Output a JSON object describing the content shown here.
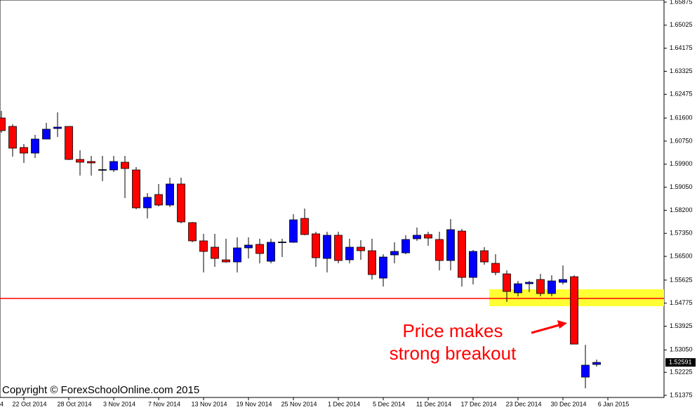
{
  "chart_data": {
    "type": "candlestick",
    "open": [
      1.61603,
      1.61292,
      1.60515,
      1.60308,
      1.60826,
      1.61215,
      1.61292,
      1.60075,
      1.59998,
      1.59687,
      1.59687,
      1.59972,
      1.59687,
      1.58289,
      1.58781,
      1.58392,
      1.59169,
      1.57745,
      1.57072,
      1.56839,
      1.56373,
      1.56295,
      1.56813,
      1.56942,
      1.56321,
      1.5702,
      1.5702,
      1.579,
      1.57331,
      1.56424,
      1.57279,
      1.56373,
      1.56839,
      1.56709,
      1.55699,
      1.56554,
      1.5663,
      1.57149,
      1.57305,
      1.57123,
      1.56347,
      1.57434,
      1.55725,
      1.56709,
      1.56243,
      1.55855,
      1.55156,
      1.55492,
      1.55648,
      1.5513,
      1.55544,
      1.55751,
      1.52048,
      1.52515
    ],
    "high": [
      1.61862,
      1.6137,
      1.60645,
      1.60982,
      1.61422,
      1.6181,
      1.613,
      1.60412,
      1.60205,
      1.60205,
      1.60205,
      1.60205,
      1.5979,
      1.58832,
      1.59169,
      1.59402,
      1.59402,
      1.57771,
      1.57331,
      1.57331,
      1.57149,
      1.57201,
      1.57201,
      1.57149,
      1.57149,
      1.57149,
      1.58056,
      1.58263,
      1.57408,
      1.57408,
      1.57408,
      1.57149,
      1.57098,
      1.57149,
      1.5658,
      1.5702,
      1.57279,
      1.57564,
      1.57408,
      1.57408,
      1.57874,
      1.57512,
      1.56735,
      1.56839,
      1.5658,
      1.55984,
      1.55596,
      1.55596,
      1.55855,
      1.55803,
      1.56165,
      1.55803,
      1.5324,
      1.52696
    ],
    "low": [
      1.6106,
      1.60179,
      1.59946,
      1.60127,
      1.60826,
      1.60904,
      1.60049,
      1.5948,
      1.5948,
      1.59273,
      1.59609,
      1.58651,
      1.58237,
      1.579,
      1.5834,
      1.58315,
      1.57719,
      1.5702,
      1.55906,
      1.56114,
      1.5627,
      1.55906,
      1.56424,
      1.56243,
      1.56243,
      1.56476,
      1.57,
      1.5728,
      1.56114,
      1.55906,
      1.56243,
      1.56243,
      1.56373,
      1.55648,
      1.55389,
      1.56243,
      1.5658,
      1.57072,
      1.5689,
      1.55984,
      1.55984,
      1.55389,
      1.55466,
      1.56191,
      1.55803,
      1.54819,
      1.55026,
      1.55182,
      1.55026,
      1.55026,
      1.55466,
      1.53265,
      1.51634,
      1.52437
    ],
    "close": [
      1.61137,
      1.6049,
      1.60308,
      1.60826,
      1.61189,
      1.61266,
      1.60075,
      1.59972,
      1.59946,
      1.597,
      1.59998,
      1.59739,
      1.58289,
      1.58677,
      1.58392,
      1.59169,
      1.57771,
      1.57072,
      1.56683,
      1.56424,
      1.56295,
      1.56813,
      1.56916,
      1.56606,
      1.5702,
      1.5703,
      1.57848,
      1.57305,
      1.5645,
      1.57279,
      1.56347,
      1.56839,
      1.56709,
      1.55829,
      1.56476,
      1.56683,
      1.57123,
      1.57279,
      1.57175,
      1.56347,
      1.57486,
      1.55725,
      1.56683,
      1.56295,
      1.55906,
      1.55207,
      1.55492,
      1.55544,
      1.5513,
      1.55596,
      1.55648,
      1.53265,
      1.52489,
      1.52591
    ],
    "up_color": "#0000ff",
    "down_color": "#ff0000",
    "ylim": [
      1.51298,
      1.65953
    ],
    "yticks": [
      1.65875,
      1.65025,
      1.64175,
      1.63325,
      1.62475,
      {
        "value": 1.616,
        "label": "1.61600"
      },
      {
        "value": 1.6075,
        "label": "1.60750"
      },
      {
        "value": 1.599,
        "label": "1.59900"
      },
      {
        "value": 1.5905,
        "label": "1.59050"
      },
      {
        "value": 1.582,
        "label": "1.58200"
      },
      {
        "value": 1.5735,
        "label": "1.57350"
      },
      {
        "value": 1.565,
        "label": "1.56500"
      },
      1.55625,
      1.54775,
      1.53925,
      {
        "value": 1.5305,
        "label": "1.53050"
      },
      1.52225,
      1.51375
    ],
    "x_labels": [
      "4",
      "22 Oct 2014",
      "28 Oct 2014",
      "3 Nov 2014",
      "7 Nov 2014",
      "13 Nov 2014",
      "19 Nov 2014",
      "25 Nov 2014",
      "1 Dec 2014",
      "5 Dec 2014",
      "11 Dec 2014",
      "17 Dec 2014",
      "23 Dec 2014",
      "30 Dec 2014",
      "6 Jan 2015"
    ],
    "level": 1.54948,
    "level_color": "#ff0000",
    "zone": [
      1.54664,
      1.55285
    ],
    "zone_color": "#ffff33",
    "annotation": [
      "Price makes",
      "strong breakout"
    ],
    "copyright": "Copyright © ForexSchoolOnline.com 2015"
  }
}
